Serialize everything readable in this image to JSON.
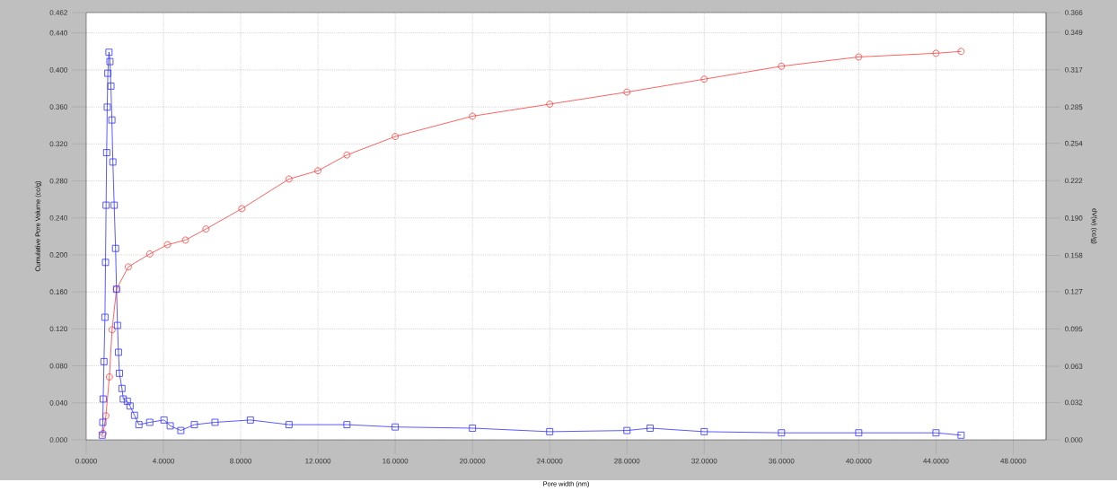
{
  "chart_data": {
    "type": "line",
    "xlabel": "Pore width (nm)",
    "ylabel": "Cumulative Pore Volume (cc/g)",
    "y2label": "dV(w) (cc/g)",
    "grid": true,
    "xlim": [
      0,
      49.7
    ],
    "ylim": [
      0,
      0.462
    ],
    "y2lim": [
      0,
      0.366
    ],
    "xticks": [
      {
        "value": 0,
        "label": "0.0000"
      },
      {
        "value": 4,
        "label": "4.0000"
      },
      {
        "value": 8,
        "label": "8.0000"
      },
      {
        "value": 12,
        "label": "12.0000"
      },
      {
        "value": 16,
        "label": "16.0000"
      },
      {
        "value": 20,
        "label": "20.0000"
      },
      {
        "value": 24,
        "label": "24.0000"
      },
      {
        "value": 28,
        "label": "28.0000"
      },
      {
        "value": 32,
        "label": "32.0000"
      },
      {
        "value": 36,
        "label": "36.0000"
      },
      {
        "value": 40,
        "label": "40.0000"
      },
      {
        "value": 44,
        "label": "44.0000"
      },
      {
        "value": 48,
        "label": "48.0000"
      }
    ],
    "yticks": [
      {
        "value": 0,
        "label": "0.000"
      },
      {
        "value": 0.04,
        "label": "0.040"
      },
      {
        "value": 0.08,
        "label": "0.080"
      },
      {
        "value": 0.12,
        "label": "0.120"
      },
      {
        "value": 0.16,
        "label": "0.160"
      },
      {
        "value": 0.2,
        "label": "0.200"
      },
      {
        "value": 0.24,
        "label": "0.240"
      },
      {
        "value": 0.28,
        "label": "0.280"
      },
      {
        "value": 0.32,
        "label": "0.320"
      },
      {
        "value": 0.36,
        "label": "0.360"
      },
      {
        "value": 0.4,
        "label": "0.400"
      },
      {
        "value": 0.44,
        "label": "0.440"
      },
      0.462
    ],
    "y2ticks": [
      {
        "value": 0,
        "label": "0.000"
      },
      0.032,
      0.063,
      0.095,
      0.127,
      0.158,
      {
        "value": 0.19,
        "label": "0.190"
      },
      0.222,
      0.254,
      0.285,
      0.317,
      0.349,
      0.366
    ],
    "series": [
      {
        "color": "#ff3b3b",
        "marker": "circle",
        "x": [
          0.88,
          1.02,
          1.2,
          1.34,
          1.57,
          2.18,
          3.29,
          4.21,
          5.14,
          6.2,
          8.06,
          10.5,
          12,
          13.5,
          16,
          20,
          24,
          28,
          32,
          36,
          40,
          44,
          45.3
        ],
        "values": [
          0.007,
          0.026,
          0.068,
          0.119,
          0.163,
          0.187,
          0.201,
          0.211,
          0.216,
          0.228,
          0.25,
          0.282,
          0.291,
          0.308,
          0.328,
          0.35,
          0.363,
          0.376,
          0.39,
          0.404,
          0.414,
          0.418,
          0.42
        ]
      },
      {
        "color": "#3030ff",
        "marker": "square",
        "axis": "y2",
        "x": [
          0.83,
          0.86,
          0.88,
          0.92,
          0.97,
          1.0,
          1.03,
          1.06,
          1.09,
          1.12,
          1.18,
          1.23,
          1.28,
          1.33,
          1.38,
          1.45,
          1.52,
          1.57,
          1.62,
          1.67,
          1.72,
          1.85,
          1.92,
          2.13,
          2.27,
          2.5,
          2.73,
          3.29,
          4.03,
          4.35,
          4.9,
          5.6,
          6.67,
          8.5,
          10.5,
          13.5,
          16,
          20,
          24,
          28,
          29.2,
          32,
          36,
          40,
          44,
          45.3
        ],
        "values": [
          0.004,
          0.015,
          0.035,
          0.067,
          0.105,
          0.152,
          0.201,
          0.246,
          0.285,
          0.314,
          0.332,
          0.324,
          0.303,
          0.274,
          0.238,
          0.201,
          0.164,
          0.129,
          0.098,
          0.075,
          0.057,
          0.044,
          0.035,
          0.033,
          0.029,
          0.021,
          0.013,
          0.015,
          0.017,
          0.012,
          0.008,
          0.013,
          0.015,
          0.017,
          0.013,
          0.013,
          0.011,
          0.01,
          0.007,
          0.008,
          0.01,
          0.007,
          0.006,
          0.006,
          0.006,
          0.004
        ]
      }
    ]
  }
}
